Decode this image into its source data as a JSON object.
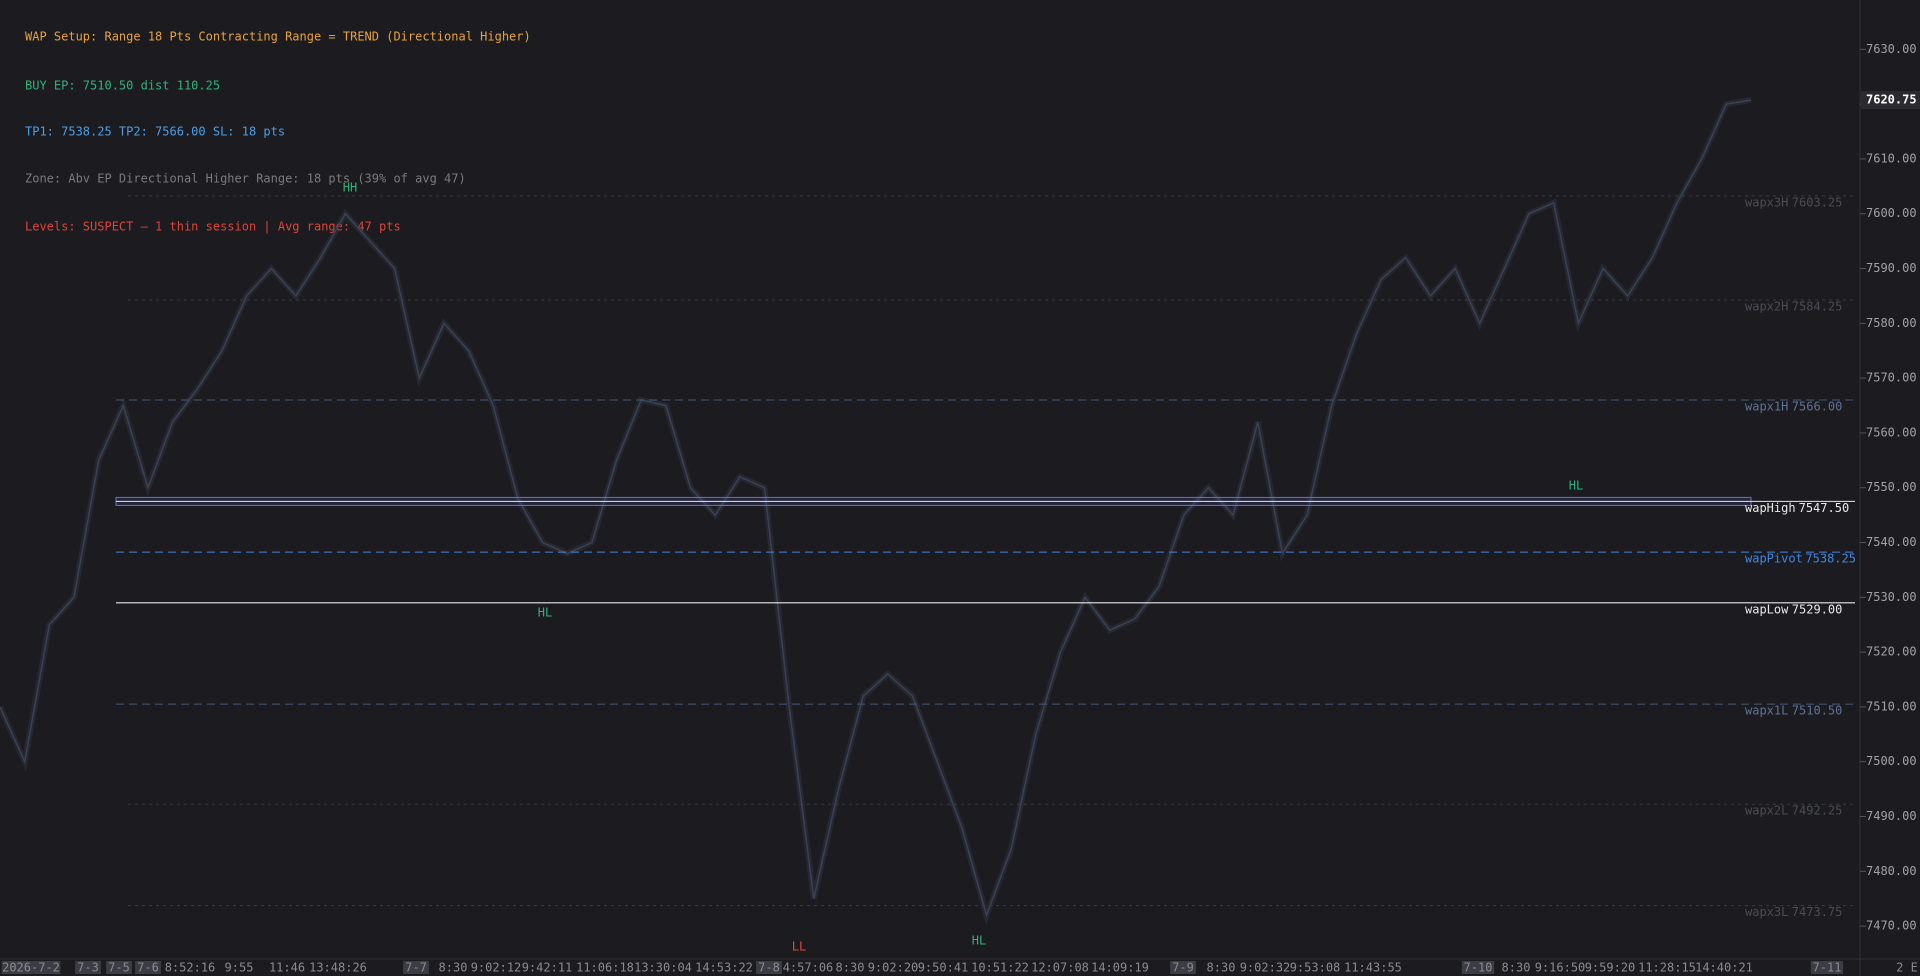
{
  "chart_data": {
    "type": "line",
    "header": [
      "WAP Setup: Range 18 Pts  Contracting Range = TREND (Directional Higher)",
      "BUY   EP: 7510.50   dist 110.25",
      "TP1: 7538.25   TP2: 7566.00   SL: 18 pts",
      "Zone: Abv EP   Directional Higher   Range: 18 pts (39% of avg 47)",
      "Levels: SUSPECT — 1 thin session  |  Avg range: 47 pts"
    ],
    "header_colors": [
      "#e8a33a",
      "#2fb37e",
      "#4a9fe8",
      "#7a7a80",
      "#e0443a"
    ],
    "series": [
      {
        "color": "#3a4252",
        "values": [
          7510,
          7500,
          7525,
          7530,
          7555,
          7565,
          7550,
          7562,
          7568,
          7575,
          7585,
          7590,
          7585,
          7592,
          7600,
          7595,
          7590,
          7570,
          7580,
          7575,
          7565,
          7548,
          7540,
          7538,
          7540,
          7555,
          7566,
          7565,
          7550,
          7545,
          7552,
          7550,
          7510,
          7475,
          7495,
          7512,
          7516,
          7512,
          7500,
          7488,
          7472,
          7484,
          7505,
          7520,
          7530,
          7524,
          7526,
          7532,
          7545,
          7550,
          7545,
          7562,
          7538,
          7545,
          7565,
          7578,
          7588,
          7592,
          7585,
          7590,
          7580,
          7590,
          7600,
          7602,
          7580,
          7590,
          7585,
          7592,
          7602,
          7610,
          7620,
          7620.75
        ]
      }
    ],
    "levels": [
      {
        "name": "wapx3H",
        "value": 7603.25,
        "value_label": "7603.25",
        "color": "#3a3d46",
        "style": "dotted"
      },
      {
        "name": "wapx2H",
        "value": 7584.25,
        "value_label": "7584.25",
        "color": "#3a3d46",
        "style": "dotted"
      },
      {
        "name": "wapx1H",
        "value": 7566,
        "value_label": "7566.00",
        "color": "#45597a",
        "style": "dashed"
      },
      {
        "name": "wapHigh",
        "value": 7547.5,
        "value_label": "7547.50",
        "color": "#e8e8e8",
        "style": "band"
      },
      {
        "name": "wapPivot",
        "value": 7538.25,
        "value_label": "7538.25",
        "color": "#3f86e0",
        "style": "dashed"
      },
      {
        "name": "wapLow",
        "value": 7529,
        "value_label": "7529.00",
        "color": "#e8e8e8",
        "style": "solid"
      },
      {
        "name": "wapx1L",
        "value": 7510.5,
        "value_label": "7510.50",
        "color": "#45597a",
        "style": "dashed"
      },
      {
        "name": "wapx2L",
        "value": 7492.25,
        "value_label": "7492.25",
        "color": "#3a3d46",
        "style": "dotted"
      },
      {
        "name": "wapx3L",
        "value": 7473.75,
        "value_label": "7473.75",
        "color": "#3a3d46",
        "style": "dotted"
      }
    ],
    "swings": [
      {
        "text": "HH",
        "color": "#2fb37e"
      },
      {
        "text": "HL",
        "color": "#2fb37e"
      },
      {
        "text": "LL",
        "color": "#e0443a"
      },
      {
        "text": "HL",
        "color": "#2fb37e"
      },
      {
        "text": "HL",
        "color": "#2fb37e"
      }
    ],
    "last_price": 7620.75,
    "ylim": [
      7464,
      7639
    ],
    "yticks": [
      {
        "value": 7470,
        "label": "7470.00"
      },
      {
        "value": 7480,
        "label": "7480.00"
      },
      {
        "value": 7490,
        "label": "7490.00"
      },
      {
        "value": 7500,
        "label": "7500.00"
      },
      {
        "value": 7510,
        "label": "7510.00"
      },
      {
        "value": 7520,
        "label": "7520.00"
      },
      {
        "value": 7530,
        "label": "7530.00"
      },
      {
        "value": 7540,
        "label": "7540.00"
      },
      {
        "value": 7550,
        "label": "7550.00"
      },
      {
        "value": 7560,
        "label": "7560.00"
      },
      {
        "value": 7570,
        "label": "7570.00"
      },
      {
        "value": 7580,
        "label": "7580.00"
      },
      {
        "value": 7590,
        "label": "7590.00"
      },
      {
        "value": 7600,
        "label": "7600.00"
      },
      {
        "value": 7610,
        "label": "7610.00"
      },
      {
        "value": 7620,
        "label": "7620.00"
      },
      {
        "value": 7630,
        "label": "7630.00"
      }
    ],
    "time_labels": [
      {
        "label": "2026-7-2",
        "boxed": true
      },
      {
        "label": "7-3",
        "boxed": true
      },
      {
        "label": "7-5",
        "boxed": true
      },
      {
        "label": "7-6",
        "boxed": true
      },
      {
        "label": "8:52:16",
        "boxed": false
      },
      {
        "label": "9:55",
        "boxed": false
      },
      {
        "label": "11:46",
        "boxed": false
      },
      {
        "label": "13:48:26",
        "boxed": false
      },
      {
        "label": "7-7",
        "boxed": true
      },
      {
        "label": "8:30",
        "boxed": false
      },
      {
        "label": "9:02:12",
        "boxed": false
      },
      {
        "label": "9:42:11",
        "boxed": false
      },
      {
        "label": "11:06:18",
        "boxed": false
      },
      {
        "label": "13:30:04",
        "boxed": false
      },
      {
        "label": "14:53:22",
        "boxed": false
      },
      {
        "label": "7-8",
        "boxed": true
      },
      {
        "label": "4:57:06",
        "boxed": false
      },
      {
        "label": "8:30",
        "boxed": false
      },
      {
        "label": "9:02:20",
        "boxed": false
      },
      {
        "label": "9:50:41",
        "boxed": false
      },
      {
        "label": "10:51:22",
        "boxed": false
      },
      {
        "label": "12:07:08",
        "boxed": false
      },
      {
        "label": "14:09:19",
        "boxed": false
      },
      {
        "label": "7-9",
        "boxed": true
      },
      {
        "label": "8:30",
        "boxed": false
      },
      {
        "label": "9:02:32",
        "boxed": false
      },
      {
        "label": "9:53:08",
        "boxed": false
      },
      {
        "label": "11:43:55",
        "boxed": false
      },
      {
        "label": "7-10",
        "boxed": true
      },
      {
        "label": "8:30",
        "boxed": false
      },
      {
        "label": "9:16:50",
        "boxed": false
      },
      {
        "label": "9:59:20",
        "boxed": false
      },
      {
        "label": "11:28:15",
        "boxed": false
      },
      {
        "label": "14:40:21",
        "boxed": false
      },
      {
        "label": "7-11",
        "boxed": true
      },
      {
        "label": "2 E",
        "boxed": false
      }
    ]
  }
}
